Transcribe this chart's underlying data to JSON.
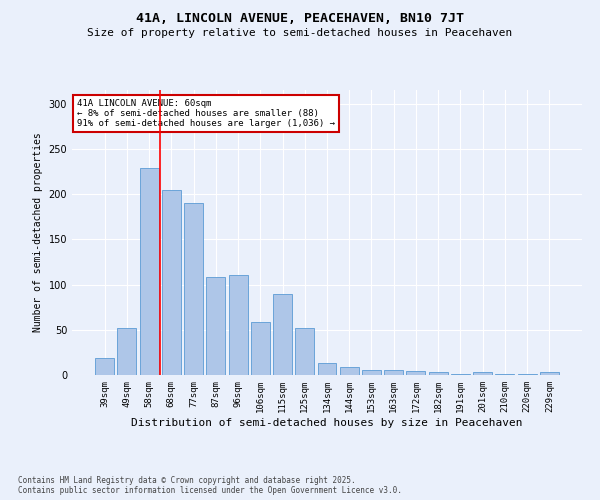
{
  "title": "41A, LINCOLN AVENUE, PEACEHAVEN, BN10 7JT",
  "subtitle": "Size of property relative to semi-detached houses in Peacehaven",
  "xlabel": "Distribution of semi-detached houses by size in Peacehaven",
  "ylabel": "Number of semi-detached properties",
  "categories": [
    "39sqm",
    "49sqm",
    "58sqm",
    "68sqm",
    "77sqm",
    "87sqm",
    "96sqm",
    "106sqm",
    "115sqm",
    "125sqm",
    "134sqm",
    "144sqm",
    "153sqm",
    "163sqm",
    "172sqm",
    "182sqm",
    "191sqm",
    "201sqm",
    "210sqm",
    "220sqm",
    "229sqm"
  ],
  "values": [
    19,
    52,
    229,
    205,
    190,
    108,
    110,
    59,
    90,
    52,
    13,
    9,
    5,
    5,
    4,
    3,
    1,
    3,
    1,
    1,
    3
  ],
  "bar_color": "#aec6e8",
  "bar_edge_color": "#5b9bd5",
  "background_color": "#eaf0fb",
  "grid_color": "#ffffff",
  "annotation_text": "41A LINCOLN AVENUE: 60sqm\n← 8% of semi-detached houses are smaller (88)\n91% of semi-detached houses are larger (1,036) →",
  "annotation_box_color": "#ffffff",
  "annotation_box_edge_color": "#cc0000",
  "red_line_x": 2.5,
  "ylim": [
    0,
    315
  ],
  "yticks": [
    0,
    50,
    100,
    150,
    200,
    250,
    300
  ],
  "footer_line1": "Contains HM Land Registry data © Crown copyright and database right 2025.",
  "footer_line2": "Contains public sector information licensed under the Open Government Licence v3.0.",
  "title_fontsize": 9.5,
  "subtitle_fontsize": 8,
  "xlabel_fontsize": 8,
  "ylabel_fontsize": 7,
  "tick_fontsize": 6.5,
  "annot_fontsize": 6.5,
  "footer_fontsize": 5.5
}
